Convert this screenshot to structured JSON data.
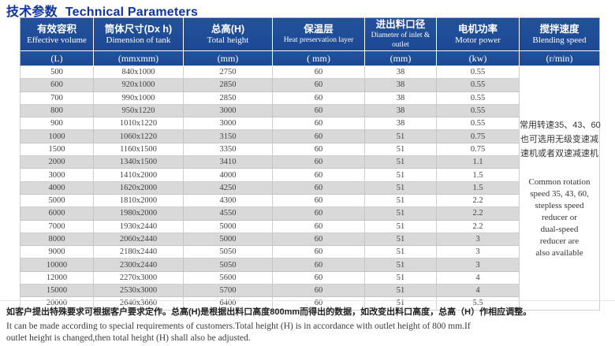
{
  "title": {
    "zh": "技术参数",
    "en": "Technical Parameters"
  },
  "table": {
    "columns": [
      {
        "zh": "有效容积",
        "en": "Effective volume",
        "unit": "(L)",
        "small_en": false
      },
      {
        "zh": "筒体尺寸(Dx h)",
        "en": "Dimension of tank",
        "unit": "(mmxmm)",
        "small_en": false
      },
      {
        "zh": "总高(H)",
        "en": "Total height",
        "unit": "(mm)",
        "small_en": false
      },
      {
        "zh": "保温层",
        "en": "Heat preservation layer",
        "unit": "( mm)",
        "small_en": true
      },
      {
        "zh": "进出料口径",
        "en": "Diameter of inlet & outlet",
        "unit": "(mm)",
        "small_en": true
      },
      {
        "zh": "电机功率",
        "en": "Motor power",
        "unit": "(kw)",
        "small_en": false
      },
      {
        "zh": "搅拌速度",
        "en": "Blending speed",
        "unit": "(r/min)",
        "small_en": false
      }
    ],
    "rows": [
      [
        "500",
        "840x1000",
        "2750",
        "60",
        "38",
        "0.55"
      ],
      [
        "600",
        "920x1000",
        "2850",
        "60",
        "38",
        "0.55"
      ],
      [
        "700",
        "990x1000",
        "2850",
        "60",
        "38",
        "0.55"
      ],
      [
        "800",
        "950x1220",
        "3000",
        "60",
        "38",
        "0.55"
      ],
      [
        "900",
        "1010x1220",
        "3000",
        "60",
        "38",
        "0.55"
      ],
      [
        "1000",
        "1060x1220",
        "3150",
        "60",
        "51",
        "0.75"
      ],
      [
        "1500",
        "1160x1500",
        "3350",
        "60",
        "51",
        "0.75"
      ],
      [
        "2000",
        "1340x1500",
        "3410",
        "60",
        "51",
        "1.1"
      ],
      [
        "3000",
        "1410x2000",
        "4000",
        "60",
        "51",
        "1.5"
      ],
      [
        "4000",
        "1620x2000",
        "4250",
        "60",
        "51",
        "1.5"
      ],
      [
        "5000",
        "1810x2000",
        "4300",
        "60",
        "51",
        "2.2"
      ],
      [
        "6000",
        "1980x2000",
        "4550",
        "60",
        "51",
        "2.2"
      ],
      [
        "7000",
        "1930x2440",
        "5000",
        "60",
        "51",
        "2.2"
      ],
      [
        "8000",
        "2060x2440",
        "5000",
        "60",
        "51",
        "3"
      ],
      [
        "9000",
        "2180x2440",
        "5050",
        "60",
        "51",
        "3"
      ],
      [
        "10000",
        "2300x2440",
        "5050",
        "60",
        "51",
        "3"
      ],
      [
        "12000",
        "2270x3000",
        "5600",
        "60",
        "51",
        "4"
      ],
      [
        "15000",
        "2530x3000",
        "5700",
        "60",
        "51",
        "4"
      ],
      [
        "20000",
        "2640x3660",
        "6400",
        "60",
        "51",
        "5.5"
      ]
    ],
    "blending_speed_cell": {
      "zh_lines": [
        "常用转速35、43、60",
        "也可选用无级变速减",
        "速机或者双速减速机"
      ],
      "en_lines": [
        "Common rotation",
        "speed 35, 43, 60,",
        "stepless speed",
        "reducer or",
        "dual-speed",
        "reducer are",
        "also available"
      ]
    }
  },
  "notes": {
    "zh": "如客户提出特殊要求可根据客户要求定作。总高(H)是根据出料口高度800mm而得出的数据，如改变出料口高度，总高（H）作相应调整。",
    "en": "It can be made according to special requirements of customers.Total height (H) is in accordance with outlet height of 800 mm.If outlet height is changed,then total height (H) shall also be adjusted."
  },
  "colors": {
    "header_blue": "#1d4c9e",
    "title_blue": "#0c34a4",
    "stripe_gray": "#d9d9d9"
  }
}
